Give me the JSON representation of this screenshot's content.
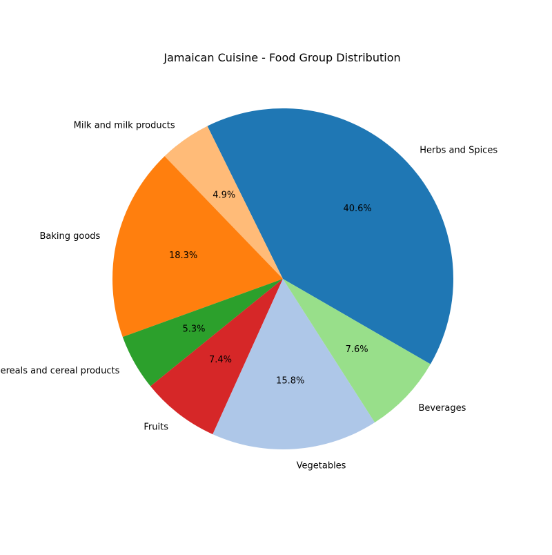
{
  "chart_data": {
    "type": "pie",
    "title": "Jamaican Cuisine - Food Group Distribution",
    "categories": [
      "Herbs and Spices",
      "Milk and milk products",
      "Baking goods",
      "Cereals and cereal products",
      "Fruits",
      "Vegetables",
      "Beverages"
    ],
    "values": [
      40.6,
      4.9,
      18.3,
      5.3,
      7.4,
      15.8,
      7.6
    ],
    "value_labels": [
      "40.6%",
      "4.9%",
      "18.3%",
      "5.3%",
      "7.4%",
      "15.8%",
      "7.6%"
    ],
    "colors": [
      "#1f77b4",
      "#ffbb78",
      "#ff7f0e",
      "#2ca02c",
      "#d62728",
      "#aec7e8",
      "#98df8a"
    ],
    "start_angle_deg": -30,
    "direction": "counterclockwise"
  }
}
